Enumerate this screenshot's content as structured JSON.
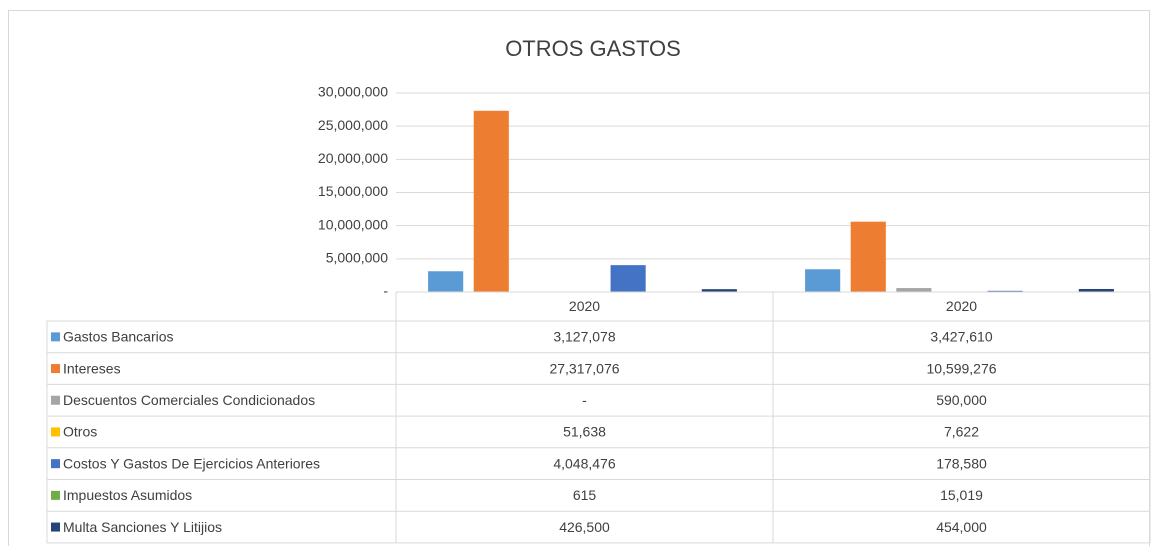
{
  "chart_data": {
    "type": "bar",
    "title": "OTROS GASTOS",
    "categories": [
      "2020",
      "2020"
    ],
    "ylim": [
      0,
      30000000
    ],
    "yticks": [
      {
        "value": 0,
        "label": "-"
      },
      {
        "value": 5000000,
        "label": "5,000,000"
      },
      {
        "value": 10000000,
        "label": "10,000,000"
      },
      {
        "value": 15000000,
        "label": "15,000,000"
      },
      {
        "value": 20000000,
        "label": "20,000,000"
      },
      {
        "value": 25000000,
        "label": "25,000,000"
      },
      {
        "value": 30000000,
        "label": "30,000,000"
      }
    ],
    "grid": true,
    "series": [
      {
        "name": "Gastos Bancarios",
        "color": "#5b9bd5",
        "values": [
          3127078,
          3427610
        ],
        "value_labels": [
          "3,127,078",
          "3,427,610"
        ]
      },
      {
        "name": "Intereses",
        "color": "#ed7d31",
        "values": [
          27317076,
          10599276
        ],
        "value_labels": [
          "27,317,076",
          "10,599,276"
        ]
      },
      {
        "name": "Descuentos Comerciales Condicionados",
        "color": "#a5a5a5",
        "values": [
          0,
          590000
        ],
        "value_labels": [
          "-",
          "590,000"
        ]
      },
      {
        "name": "Otros",
        "color": "#ffc000",
        "values": [
          51638,
          7622
        ],
        "value_labels": [
          "51,638",
          "7,622"
        ]
      },
      {
        "name": "Costos Y Gastos De Ejercicios Anteriores",
        "color": "#4472c4",
        "values": [
          4048476,
          178580
        ],
        "value_labels": [
          "4,048,476",
          "178,580"
        ]
      },
      {
        "name": "Impuestos Asumidos",
        "color": "#70ad47",
        "values": [
          615,
          15019
        ],
        "value_labels": [
          "615",
          "15,019"
        ]
      },
      {
        "name": "Multa Sanciones Y Litijios",
        "color": "#264478",
        "values": [
          426500,
          454000
        ],
        "value_labels": [
          "426,500",
          "454,000"
        ]
      }
    ]
  }
}
